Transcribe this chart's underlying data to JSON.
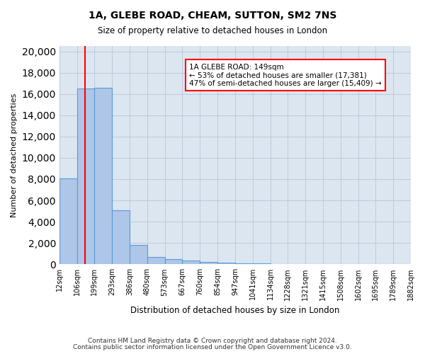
{
  "title": "1A, GLEBE ROAD, CHEAM, SUTTON, SM2 7NS",
  "subtitle": "Size of property relative to detached houses in London",
  "xlabel": "Distribution of detached houses by size in London",
  "ylabel": "Number of detached properties",
  "bin_labels": [
    "12sqm",
    "106sqm",
    "199sqm",
    "293sqm",
    "386sqm",
    "480sqm",
    "573sqm",
    "667sqm",
    "760sqm",
    "854sqm",
    "947sqm",
    "1041sqm",
    "1134sqm",
    "1228sqm",
    "1321sqm",
    "1415sqm",
    "1508sqm",
    "1602sqm",
    "1695sqm",
    "1789sqm",
    "1882sqm"
  ],
  "bar_values": [
    8050,
    16500,
    16600,
    5100,
    1800,
    700,
    500,
    350,
    200,
    150,
    100,
    70,
    50,
    30,
    20,
    15,
    10,
    8,
    5,
    3
  ],
  "bar_color": "#aec6e8",
  "bar_edge_color": "#5b9bd5",
  "annotation_text": "1A GLEBE ROAD: 149sqm\n← 53% of detached houses are smaller (17,381)\n47% of semi-detached houses are larger (15,409) →",
  "annotation_box_color": "#ffffff",
  "annotation_box_edge_color": "#ff0000",
  "red_line_color": "#ff0000",
  "grid_color": "#c0c8d8",
  "background_color": "#dce6f1",
  "footer_line1": "Contains HM Land Registry data © Crown copyright and database right 2024.",
  "footer_line2": "Contains public sector information licensed under the Open Government Licence v3.0.",
  "ylim": [
    0,
    20500
  ],
  "yticks": [
    0,
    2000,
    4000,
    6000,
    8000,
    10000,
    12000,
    14000,
    16000,
    18000,
    20000
  ]
}
